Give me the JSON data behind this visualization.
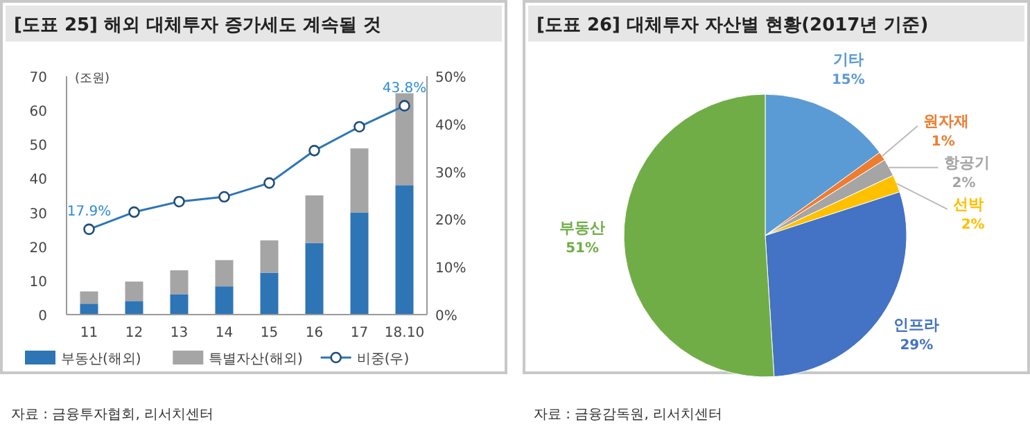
{
  "chart_data": [
    {
      "type": "bar",
      "title": "[도표 25] 해외 대체투자 증가세도 계속될 것",
      "ylabel": "(조원)",
      "categories": [
        "11",
        "12",
        "13",
        "14",
        "15",
        "16",
        "17",
        "18.10"
      ],
      "stacked": true,
      "legend": "bottom",
      "ylim": [
        0,
        70
      ],
      "yticks": [
        0,
        10,
        20,
        30,
        40,
        50,
        60,
        70
      ],
      "y2lim": [
        0,
        50
      ],
      "y2ticks": [
        {
          "value": 0,
          "label": "0%"
        },
        {
          "value": 10,
          "label": "10%"
        },
        {
          "value": 20,
          "label": "20%"
        },
        {
          "value": 30,
          "label": "30%"
        },
        {
          "value": 40,
          "label": "40%"
        },
        {
          "value": 50,
          "label": "50%"
        }
      ],
      "series": [
        {
          "name": "부동산(해외)",
          "color": "#2e75b6",
          "values": [
            3.2,
            4,
            6,
            8.3,
            12.3,
            21,
            30,
            38
          ]
        },
        {
          "name": "특별자산(해외)",
          "color": "#a5a5a5",
          "values": [
            3.6,
            5.7,
            7,
            7.7,
            9.5,
            14,
            18.8,
            27
          ]
        },
        {
          "name": "비중(우)",
          "type": "line",
          "axis": "y2",
          "color": "#2e75b6",
          "marker": "circle",
          "values": [
            17.9,
            21.5,
            23.7,
            24.7,
            27.6,
            34.4,
            39.4,
            43.8
          ],
          "value_labels": [
            "17.9%",
            null,
            null,
            null,
            null,
            null,
            null,
            "43.8%"
          ]
        }
      ],
      "annotations": [
        "자료 : 금융투자협회, 리서치센터"
      ]
    },
    {
      "type": "pie",
      "title": "[도표 26] 대체투자 자산별 현황(2017년 기준)",
      "categories": [
        "기타",
        "원자재",
        "항공기",
        "선박",
        "인프라",
        "부동산"
      ],
      "values": [
        15,
        1,
        2,
        2,
        29,
        51
      ],
      "colors": [
        "#5b9bd5",
        "#ed7d31",
        "#a5a5a5",
        "#ffc000",
        "#4472c4",
        "#70ad47"
      ],
      "value_labels": [
        "15%",
        "1%",
        "2%",
        "2%",
        "29%",
        "51%"
      ],
      "annotations": [
        "자료 : 금융감독원, 리서치센터"
      ]
    }
  ]
}
